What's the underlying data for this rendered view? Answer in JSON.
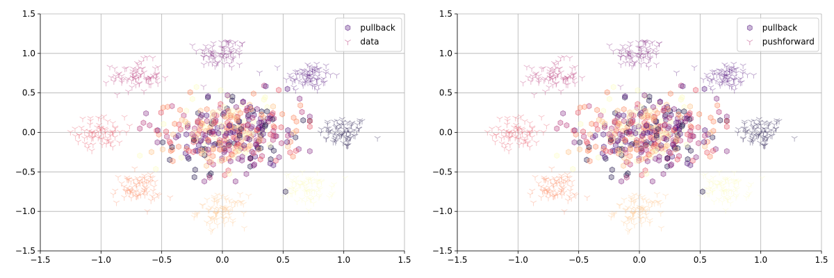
{
  "chart_data": [
    {
      "type": "scatter",
      "xlim": [
        -1.5,
        1.5
      ],
      "ylim": [
        -1.5,
        1.5
      ],
      "xticks": [
        "−1.5",
        "−1.0",
        "−0.5",
        "0.0",
        "0.5",
        "1.0",
        "1.5"
      ],
      "yticks": [
        "−1.5",
        "−1.0",
        "−0.5",
        "0.0",
        "0.5",
        "1.0",
        "1.5"
      ],
      "grid": true,
      "legend_position": "top-right",
      "colormap": "magma",
      "series": [
        {
          "name": "pullback",
          "marker": "hexagon",
          "description": "points concentrated near origin, spread roughly x in [-0.6, 0.7], y in [-0.7, 0.6]",
          "cluster_centers": [
            [
              0.0,
              0.0
            ],
            [
              0.3,
              0.1
            ],
            [
              -0.2,
              -0.1
            ],
            [
              0.1,
              -0.2
            ],
            [
              -0.1,
              0.2
            ]
          ],
          "spread_x": 0.22,
          "spread_y": 0.2
        },
        {
          "name": "data",
          "marker": "tri_down",
          "cluster_centers": [
            [
              1.0,
              0.0
            ],
            [
              0.71,
              0.71
            ],
            [
              0.0,
              1.0
            ],
            [
              -0.71,
              0.71
            ],
            [
              -1.0,
              0.0
            ],
            [
              -0.71,
              -0.71
            ],
            [
              0.0,
              -1.0
            ],
            [
              0.71,
              -0.71
            ]
          ],
          "spread": 0.1
        }
      ]
    },
    {
      "type": "scatter",
      "xlim": [
        -1.5,
        1.5
      ],
      "ylim": [
        -1.5,
        1.5
      ],
      "xticks": [
        "−1.5",
        "−1.0",
        "−0.5",
        "0.0",
        "0.5",
        "1.0",
        "1.5"
      ],
      "yticks": [
        "−1.5",
        "−1.0",
        "−0.5",
        "0.0",
        "0.5",
        "1.0",
        "1.5"
      ],
      "grid": true,
      "legend_position": "top-right",
      "colormap": "magma",
      "series": [
        {
          "name": "pullback",
          "marker": "hexagon",
          "cluster_centers": [
            [
              0.0,
              0.0
            ],
            [
              0.3,
              0.1
            ],
            [
              -0.2,
              -0.1
            ],
            [
              0.1,
              -0.2
            ],
            [
              -0.1,
              0.2
            ]
          ],
          "spread_x": 0.22,
          "spread_y": 0.2
        },
        {
          "name": "pushforward",
          "marker": "tri_down",
          "cluster_centers": [
            [
              1.0,
              0.0
            ],
            [
              0.71,
              0.71
            ],
            [
              0.0,
              1.0
            ],
            [
              -0.71,
              0.71
            ],
            [
              -1.0,
              0.0
            ],
            [
              -0.71,
              -0.71
            ],
            [
              0.0,
              -1.0
            ],
            [
              0.71,
              -0.71
            ]
          ],
          "spread": 0.1
        }
      ]
    }
  ],
  "cluster_colors": [
    "#1d1147",
    "#51127c",
    "#822681",
    "#b73779",
    "#e75263",
    "#fc8961",
    "#fec287",
    "#fcfdbf"
  ]
}
